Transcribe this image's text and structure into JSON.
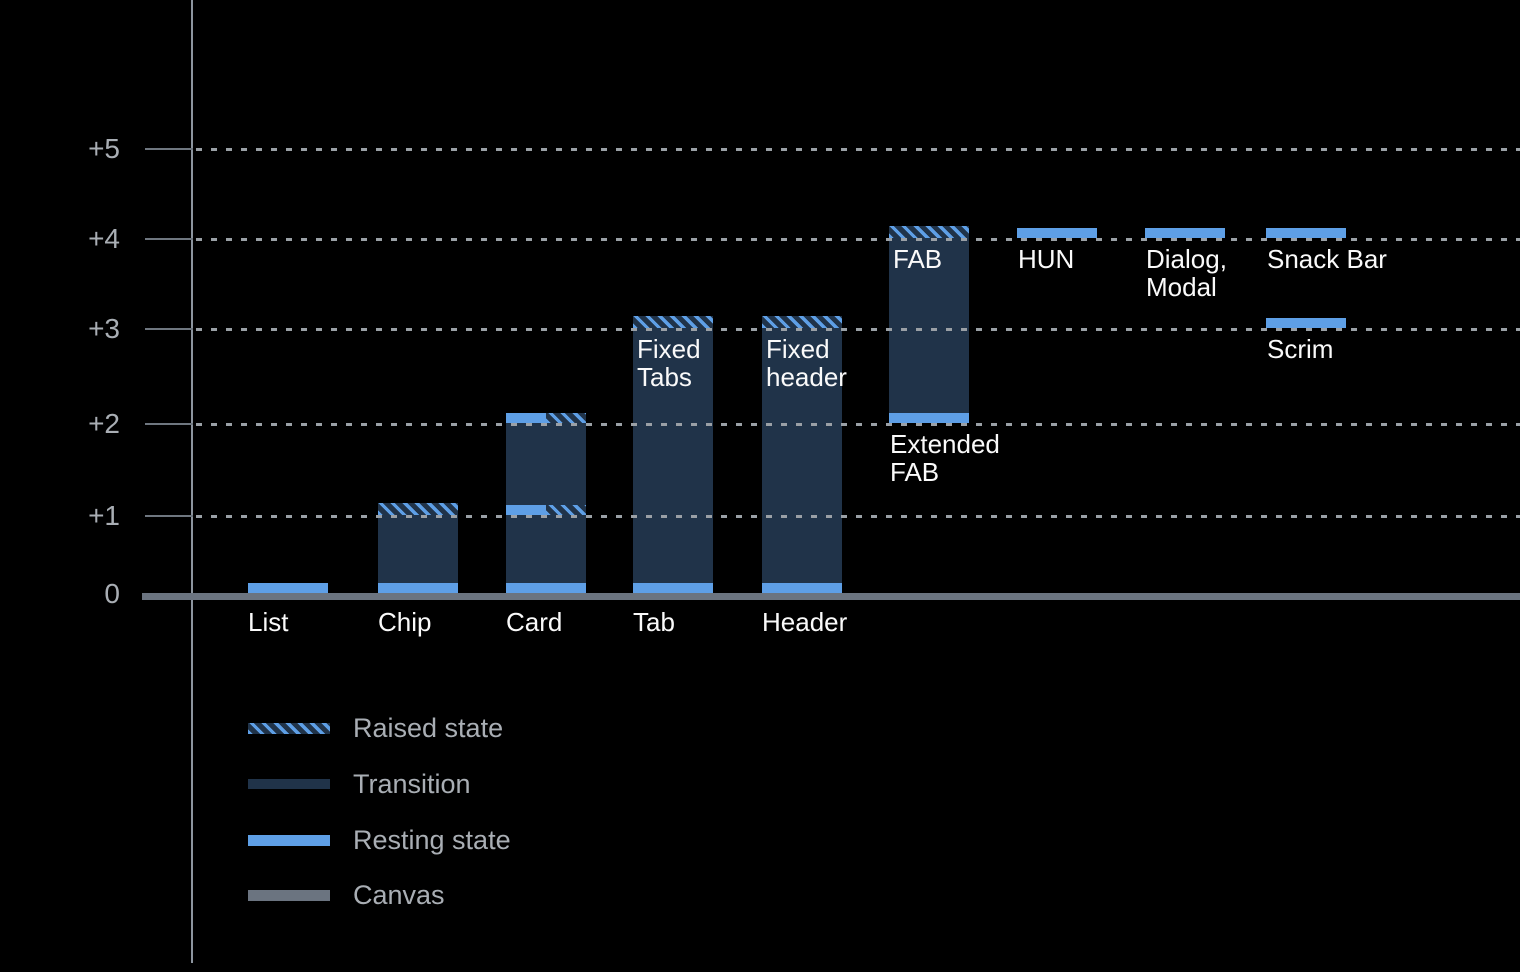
{
  "chart_data": {
    "type": "bar",
    "title": "",
    "xlabel": "",
    "ylabel": "",
    "ylim": [
      0,
      5
    ],
    "grid": "dotted horizontal",
    "y_axis": {
      "tick_labels": [
        "0",
        "+1",
        "+2",
        "+3",
        "+4",
        "+5"
      ]
    },
    "columns": [
      {
        "name": "List",
        "axis_label": "List",
        "marks": [
          {
            "level": 0,
            "kind": "resting"
          }
        ]
      },
      {
        "name": "Chip",
        "axis_label": "Chip",
        "transition": [
          0,
          1
        ],
        "marks": [
          {
            "level": 0,
            "kind": "resting"
          },
          {
            "level": 1,
            "kind": "raised"
          }
        ]
      },
      {
        "name": "Card",
        "axis_label": "Card",
        "transition": [
          0,
          2
        ],
        "marks": [
          {
            "level": 0,
            "kind": "resting"
          },
          {
            "level": 1,
            "kind": "split"
          },
          {
            "level": 2,
            "kind": "split"
          }
        ]
      },
      {
        "name": "Tab",
        "axis_label": "Tab",
        "transition": [
          0,
          3
        ],
        "marks": [
          {
            "level": 0,
            "kind": "resting"
          },
          {
            "level": 3,
            "kind": "raised"
          }
        ],
        "inner_label": [
          "Fixed",
          "Tabs"
        ]
      },
      {
        "name": "Header",
        "axis_label": "Header",
        "transition": [
          0,
          3
        ],
        "marks": [
          {
            "level": 0,
            "kind": "resting"
          },
          {
            "level": 3,
            "kind": "raised"
          }
        ],
        "inner_label": [
          "Fixed",
          "header"
        ]
      },
      {
        "name": "FAB",
        "transition": [
          2,
          4
        ],
        "marks": [
          {
            "level": 2,
            "kind": "resting"
          },
          {
            "level": 4,
            "kind": "raised"
          }
        ],
        "inner_label": [
          "FAB"
        ],
        "below_label": {
          "lines": [
            "Extended",
            "FAB"
          ],
          "level": 2
        }
      },
      {
        "name": "HUN",
        "marks": [
          {
            "level": 4,
            "kind": "resting"
          }
        ],
        "below_label": {
          "lines": [
            "HUN"
          ],
          "level": 4
        }
      },
      {
        "name": "Dialog, Modal",
        "marks": [
          {
            "level": 4,
            "kind": "resting"
          }
        ],
        "below_label": {
          "lines": [
            "Dialog,",
            "Modal"
          ],
          "level": 4
        }
      },
      {
        "name": "Snack Bar",
        "marks": [
          {
            "level": 4,
            "kind": "resting"
          },
          {
            "level": 3,
            "kind": "resting"
          }
        ],
        "below_label": {
          "lines": [
            "Snack Bar"
          ],
          "level": 4
        },
        "below_label2": {
          "lines": [
            "Scrim"
          ],
          "level": 3
        }
      }
    ],
    "legend": {
      "position": "bottom-left",
      "items": [
        {
          "label": "Raised state",
          "style": "hatched"
        },
        {
          "label": "Transition",
          "style": "solid"
        },
        {
          "label": "Resting state",
          "style": "solid"
        },
        {
          "label": "Canvas",
          "style": "solid"
        }
      ]
    },
    "colors": {
      "background": "#000000",
      "resting": "#5E9FE6",
      "transition": "#203349",
      "canvas": "#6B7480",
      "gridline": "#9AA0A6",
      "axis": "#8D959F",
      "tick": "#6F7780",
      "label_primary": "#FAFAFA",
      "label_secondary": "#A9AEB4"
    }
  }
}
